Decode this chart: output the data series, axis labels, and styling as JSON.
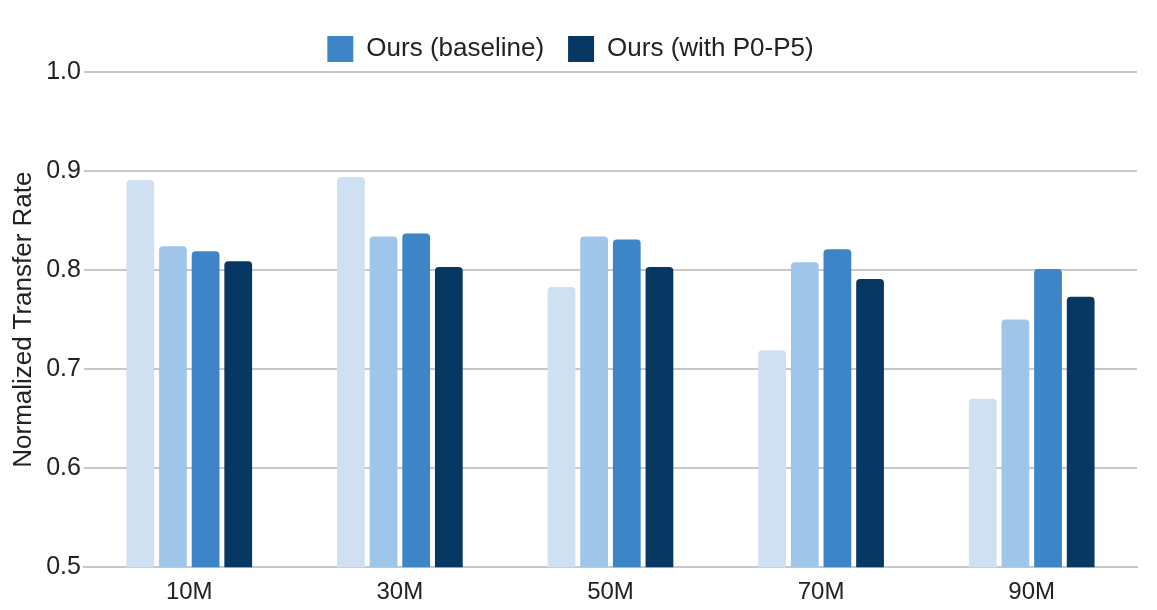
{
  "chart_data": {
    "type": "bar",
    "ylabel": "Normalized Transfer Rate",
    "categories": [
      "10M",
      "30M",
      "50M",
      "70M",
      "90M"
    ],
    "series": [
      {
        "color": "#cfe0f2",
        "values": [
          0.891,
          0.894,
          0.783,
          0.719,
          0.67
        ]
      },
      {
        "color": "#9fc5e8",
        "values": [
          0.824,
          0.834,
          0.834,
          0.808,
          0.75
        ]
      },
      {
        "name": "Ours (baseline)",
        "color": "#3d85c6",
        "values": [
          0.819,
          0.837,
          0.831,
          0.821,
          0.801
        ]
      },
      {
        "name": "Ours (with P0-P5)",
        "color": "#073763",
        "values": [
          0.809,
          0.803,
          0.803,
          0.791,
          0.773
        ]
      }
    ],
    "ylim": [
      0.5,
      1.0
    ],
    "yticks": [
      0.5,
      0.6,
      0.7,
      0.8,
      0.9,
      {
        "value": 1.0,
        "label": "1.0"
      }
    ],
    "grid": "y",
    "legend": "top"
  }
}
